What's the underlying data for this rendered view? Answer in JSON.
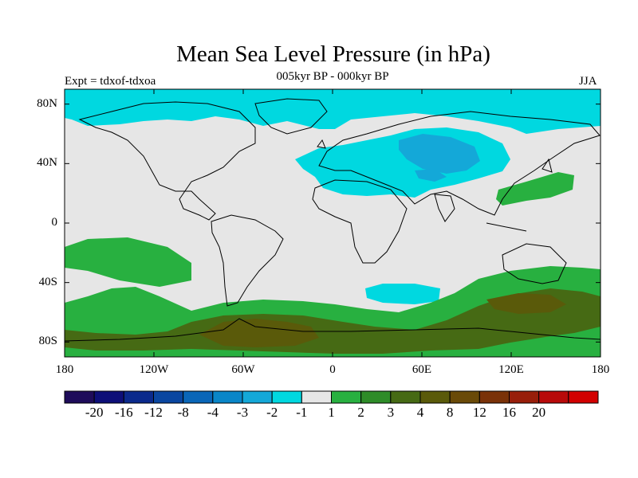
{
  "title": "Mean Sea Level Pressure (in hPa)",
  "subtitle": "005kyr BP - 000kyr BP",
  "experiment": "Expt = tdxof-tdxoa",
  "season": "JJA",
  "lat_ticks": [
    {
      "label": "80N",
      "lat": 80
    },
    {
      "label": "40N",
      "lat": 40
    },
    {
      "label": "0",
      "lat": 0
    },
    {
      "label": "40S",
      "lat": -40
    },
    {
      "label": "80S",
      "lat": -80
    }
  ],
  "lon_ticks": [
    {
      "label": "180",
      "lon": -180
    },
    {
      "label": "120W",
      "lon": -120
    },
    {
      "label": "60W",
      "lon": -60
    },
    {
      "label": "0",
      "lon": 0
    },
    {
      "label": "60E",
      "lon": 60
    },
    {
      "label": "120E",
      "lon": 120
    },
    {
      "label": "180",
      "lon": 180
    }
  ],
  "colorbar": {
    "colors": [
      "#1e0c5a",
      "#0d0f78",
      "#0b2a8c",
      "#0a46a0",
      "#0a66b8",
      "#0a86c8",
      "#14a8d8",
      "#00d8e0",
      "#e6e6e6",
      "#28b040",
      "#2e8c28",
      "#466a14",
      "#5a5a0a",
      "#6a4a08",
      "#7a3208",
      "#981e0a",
      "#b80a0a",
      "#d20000"
    ],
    "labels": [
      "-20",
      "-16",
      "-12",
      "-8",
      "-4",
      "-3",
      "-2",
      "-1",
      "1",
      "2",
      "3",
      "4",
      "8",
      "12",
      "16",
      "20"
    ]
  },
  "colors": {
    "ocean_bg": "#e6e6e6",
    "cyan_neg": "#00d8e0",
    "blue_neg": "#14a8d8",
    "green_pos": "#28b040",
    "dkgreen_pos": "#466a14",
    "brown_pos": "#5a5a0a"
  }
}
